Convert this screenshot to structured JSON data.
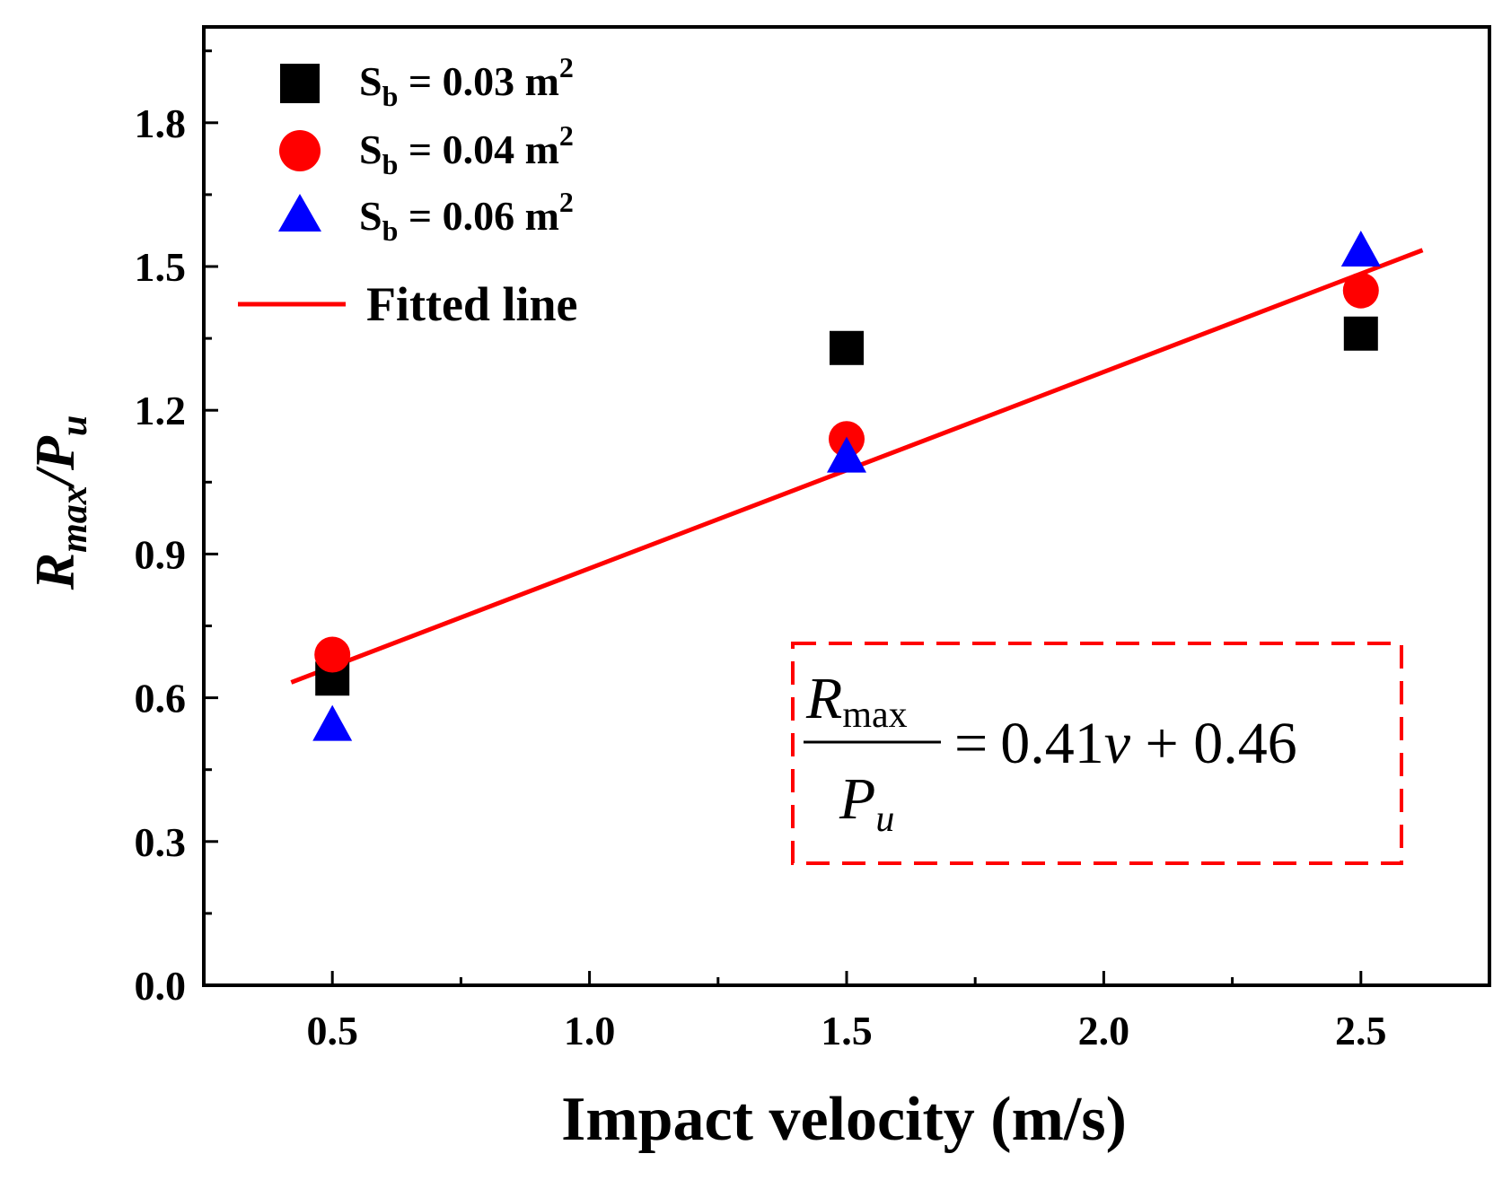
{
  "chart_data": {
    "type": "scatter",
    "title": "",
    "xlabel": "Impact velocity (m/s)",
    "ylabel": {
      "main": "R",
      "sub": "max",
      "slash": "/",
      "denom": "P",
      "denom_sub": "u"
    },
    "xlim": [
      0.25,
      2.75
    ],
    "ylim": [
      0.0,
      2.0
    ],
    "x_ticks": [
      0.5,
      1.0,
      1.5,
      2.0,
      2.5
    ],
    "x_tick_labels": [
      "0.5",
      "1.0",
      "1.5",
      "2.0",
      "2.5"
    ],
    "y_ticks": [
      0.0,
      0.3,
      0.6,
      0.9,
      1.2,
      1.5,
      1.8
    ],
    "y_tick_labels": [
      "0.0",
      "0.3",
      "0.6",
      "0.9",
      "1.2",
      "1.5",
      "1.8"
    ],
    "series": [
      {
        "name": "Sb = 0.03 m2",
        "label_main": "S",
        "label_sub": "b",
        "label_rest": " = 0.03 m",
        "label_sup": "2",
        "marker": "square",
        "color": "#000000",
        "x": [
          0.5,
          1.5,
          2.5
        ],
        "y": [
          0.64,
          1.33,
          1.36
        ]
      },
      {
        "name": "Sb = 0.04 m2",
        "label_main": "S",
        "label_sub": "b",
        "label_rest": " = 0.04 m",
        "label_sup": "2",
        "marker": "circle",
        "color": "#ff0000",
        "x": [
          0.5,
          1.5,
          2.5
        ],
        "y": [
          0.69,
          1.14,
          1.45
        ]
      },
      {
        "name": "Sb = 0.06 m2",
        "label_main": "S",
        "label_sub": "b",
        "label_rest": " = 0.06 m",
        "label_sup": "2",
        "marker": "triangle",
        "color": "#0000ff",
        "x": [
          0.5,
          1.5,
          2.5
        ],
        "y": [
          0.54,
          1.1,
          1.53
        ]
      }
    ],
    "fit": {
      "name": "Fitted line",
      "color": "#ff0000",
      "slope": 0.41,
      "intercept": 0.46,
      "x_range": [
        0.42,
        2.62
      ]
    },
    "annotation": {
      "numerator": "R",
      "numerator_sub": "max",
      "denominator": "P",
      "denominator_sub": "u",
      "rhs_equals": "=",
      "rhs_coef": "0.41",
      "rhs_var": "v",
      "rhs_rest": " + 0.46",
      "border_color": "#ff0000"
    },
    "legend_position": "top-left",
    "grid": false
  }
}
